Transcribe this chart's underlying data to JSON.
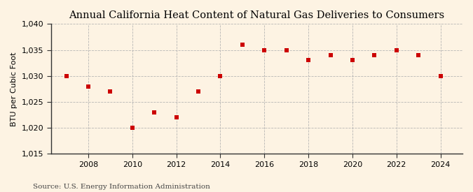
{
  "title": "Annual California Heat Content of Natural Gas Deliveries to Consumers",
  "ylabel": "BTU per Cubic Foot",
  "source": "Source: U.S. Energy Information Administration",
  "years": [
    2007,
    2008,
    2009,
    2010,
    2011,
    2012,
    2013,
    2014,
    2015,
    2016,
    2017,
    2018,
    2019,
    2020,
    2021,
    2022,
    2023,
    2024
  ],
  "values": [
    1030,
    1028,
    1027,
    1020,
    1023,
    1022,
    1027,
    1030,
    1036,
    1035,
    1035,
    1033,
    1034,
    1033,
    1034,
    1035,
    1034,
    1030
  ],
  "marker_color": "#cc0000",
  "marker_size": 16,
  "ylim": [
    1015,
    1040
  ],
  "yticks": [
    1015,
    1020,
    1025,
    1030,
    1035,
    1040
  ],
  "xticks": [
    2008,
    2010,
    2012,
    2014,
    2016,
    2018,
    2020,
    2022,
    2024
  ],
  "xlim": [
    2006.3,
    2025.0
  ],
  "background_color": "#fdf3e3",
  "plot_bg_color": "#fdf3e3",
  "grid_color": "#b0b0b0",
  "title_fontsize": 10.5,
  "label_fontsize": 8,
  "tick_fontsize": 8,
  "source_fontsize": 7.5
}
